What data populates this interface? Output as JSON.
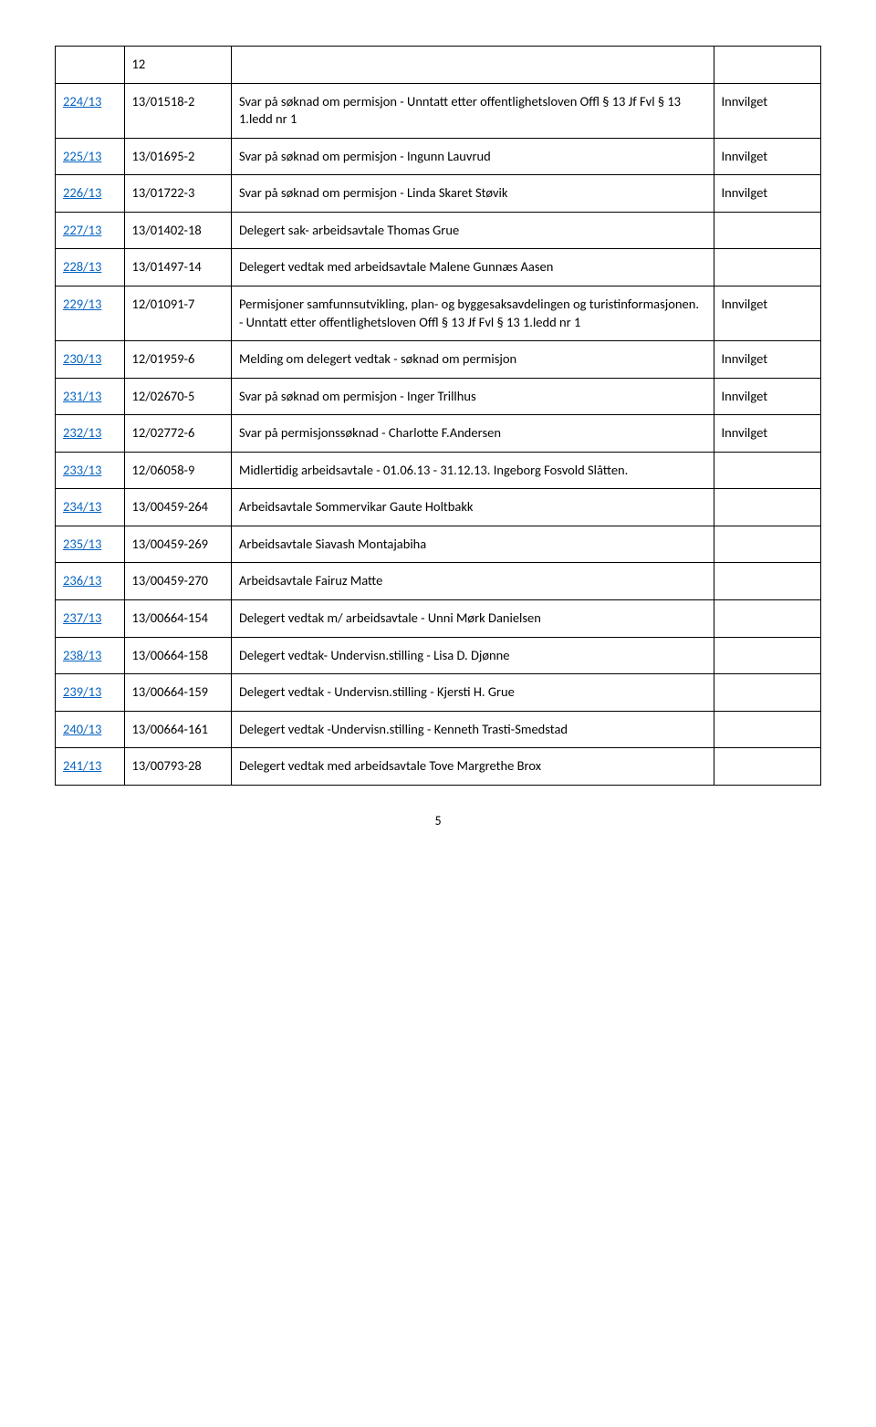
{
  "page_number": "5",
  "colors": {
    "link": "#0563c1",
    "border": "#000000",
    "text": "#000000",
    "background": "#ffffff"
  },
  "first_row_text": "12",
  "rows": [
    {
      "case": "224/13",
      "ref": "13/01518-2",
      "desc": "Svar på søknad om permisjon  - Unntatt etter offentlighetsloven Offl § 13 Jf Fvl § 13 1.ledd nr 1",
      "status": "Innvilget"
    },
    {
      "case": "225/13",
      "ref": "13/01695-2",
      "desc": "Svar på søknad om permisjon - Ingunn Lauvrud",
      "status": "Innvilget"
    },
    {
      "case": "226/13",
      "ref": "13/01722-3",
      "desc": "Svar på søknad om permisjon - Linda Skaret Støvik",
      "status": "Innvilget"
    },
    {
      "case": "227/13",
      "ref": "13/01402-18",
      "desc": "Delegert sak- arbeidsavtale Thomas Grue",
      "status": ""
    },
    {
      "case": "228/13",
      "ref": "13/01497-14",
      "desc": "Delegert vedtak med arbeidsavtale Malene Gunnæs Aasen",
      "status": ""
    },
    {
      "case": "229/13",
      "ref": "12/01091-7",
      "desc": " Permisjoner samfunnsutvikling, plan- og byggesaksavdelingen og turistinformasjonen. - Unntatt etter offentlighetsloven Offl § 13 Jf Fvl § 13 1.ledd nr 1",
      "status": "Innvilget"
    },
    {
      "case": "230/13",
      "ref": "12/01959-6",
      "desc": "Melding om delegert vedtak - søknad om permisjon",
      "status": "Innvilget"
    },
    {
      "case": "231/13",
      "ref": "12/02670-5",
      "desc": "Svar på søknad om permisjon - Inger Trillhus",
      "status": "Innvilget"
    },
    {
      "case": "232/13",
      "ref": "12/02772-6",
      "desc": "Svar på permisjonssøknad - Charlotte F.Andersen",
      "status": "Innvilget"
    },
    {
      "case": "233/13",
      "ref": "12/06058-9",
      "desc": "Midlertidig arbeidsavtale - 01.06.13 - 31.12.13. Ingeborg Fosvold Slåtten.",
      "status": ""
    },
    {
      "case": "234/13",
      "ref": "13/00459-264",
      "desc": "Arbeidsavtale Sommervikar Gaute Holtbakk",
      "status": ""
    },
    {
      "case": "235/13",
      "ref": "13/00459-269",
      "desc": "Arbeidsavtale Siavash Montajabiha",
      "status": ""
    },
    {
      "case": "236/13",
      "ref": "13/00459-270",
      "desc": "Arbeidsavtale Fairuz Matte",
      "status": ""
    },
    {
      "case": "237/13",
      "ref": "13/00664-154",
      "desc": "Delegert vedtak m/ arbeidsavtale - Unni Mørk Danielsen",
      "status": ""
    },
    {
      "case": "238/13",
      "ref": "13/00664-158",
      "desc": "Delegert vedtak- Undervisn.stilling - Lisa D. Djønne",
      "status": ""
    },
    {
      "case": "239/13",
      "ref": "13/00664-159",
      "desc": "Delegert vedtak - Undervisn.stilling - Kjersti H. Grue",
      "status": ""
    },
    {
      "case": "240/13",
      "ref": "13/00664-161",
      "desc": "Delegert vedtak -Undervisn.stilling - Kenneth Trasti-Smedstad",
      "status": ""
    },
    {
      "case": "241/13",
      "ref": "13/00793-28",
      "desc": "Delegert vedtak med arbeidsavtale Tove Margrethe Brox",
      "status": ""
    }
  ]
}
